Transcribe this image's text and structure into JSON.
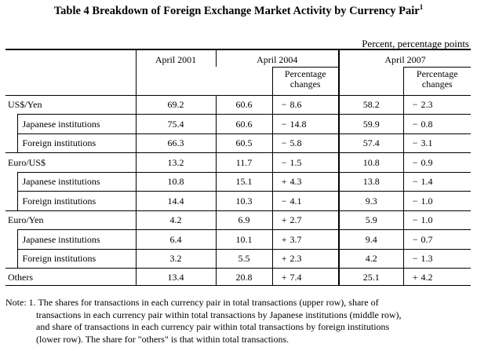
{
  "title": "Table 4  Breakdown of Foreign Exchange Market Activity by Currency Pair",
  "title_sup": "1",
  "unit": "Percent, percentage points",
  "columns": {
    "april2001": "April 2001",
    "april2004": "April 2004",
    "april2007": "April 2007",
    "pct_change_line1": "Percentage",
    "pct_change_line2": "changes"
  },
  "rows": [
    {
      "label": "US$/Yen",
      "sub": false,
      "v2001": "69.2",
      "v2004": "60.6",
      "c2004s": "−",
      "c2004": "8.6",
      "v2007": "58.2",
      "c2007s": "−",
      "c2007": "2.3"
    },
    {
      "label": "Japanese institutions",
      "sub": true,
      "v2001": "75.4",
      "v2004": "60.6",
      "c2004s": "−",
      "c2004": "14.8",
      "v2007": "59.9",
      "c2007s": "−",
      "c2007": "0.8"
    },
    {
      "label": "Foreign institutions",
      "sub": true,
      "v2001": "66.3",
      "v2004": "60.5",
      "c2004s": "−",
      "c2004": "5.8",
      "v2007": "57.4",
      "c2007s": "−",
      "c2007": "3.1"
    },
    {
      "label": "Euro/US$",
      "sub": false,
      "v2001": "13.2",
      "v2004": "11.7",
      "c2004s": "−",
      "c2004": "1.5",
      "v2007": "10.8",
      "c2007s": "−",
      "c2007": "0.9"
    },
    {
      "label": "Japanese institutions",
      "sub": true,
      "v2001": "10.8",
      "v2004": "15.1",
      "c2004s": "+",
      "c2004": "4.3",
      "v2007": "13.8",
      "c2007s": "−",
      "c2007": "1.4"
    },
    {
      "label": "Foreign institutions",
      "sub": true,
      "v2001": "14.4",
      "v2004": "10.3",
      "c2004s": "−",
      "c2004": "4.1",
      "v2007": "9.3",
      "c2007s": "−",
      "c2007": "1.0"
    },
    {
      "label": "Euro/Yen",
      "sub": false,
      "v2001": "4.2",
      "v2004": "6.9",
      "c2004s": "+",
      "c2004": "2.7",
      "v2007": "5.9",
      "c2007s": "−",
      "c2007": "1.0"
    },
    {
      "label": "Japanese institutions",
      "sub": true,
      "v2001": "6.4",
      "v2004": "10.1",
      "c2004s": "+",
      "c2004": "3.7",
      "v2007": "9.4",
      "c2007s": "−",
      "c2007": "0.7"
    },
    {
      "label": "Foreign institutions",
      "sub": true,
      "v2001": "3.2",
      "v2004": "5.5",
      "c2004s": "+",
      "c2004": "2.3",
      "v2007": "4.2",
      "c2007s": "−",
      "c2007": "1.3"
    },
    {
      "label": "Others",
      "sub": false,
      "v2001": "13.4",
      "v2004": "20.8",
      "c2004s": "+",
      "c2004": "7.4",
      "v2007": "25.1",
      "c2007s": "+",
      "c2007": "4.2"
    }
  ],
  "note": {
    "line1": "Note: 1.  The shares for transactions in each currency pair in total transactions (upper row), share of",
    "line2": "transactions in each currency pair within total transactions by Japanese institutions (middle row),",
    "line3": "and share of transactions in each currency pair within total transactions by foreign institutions",
    "line4": "(lower row). The share for \"others\" is that within total transactions."
  }
}
